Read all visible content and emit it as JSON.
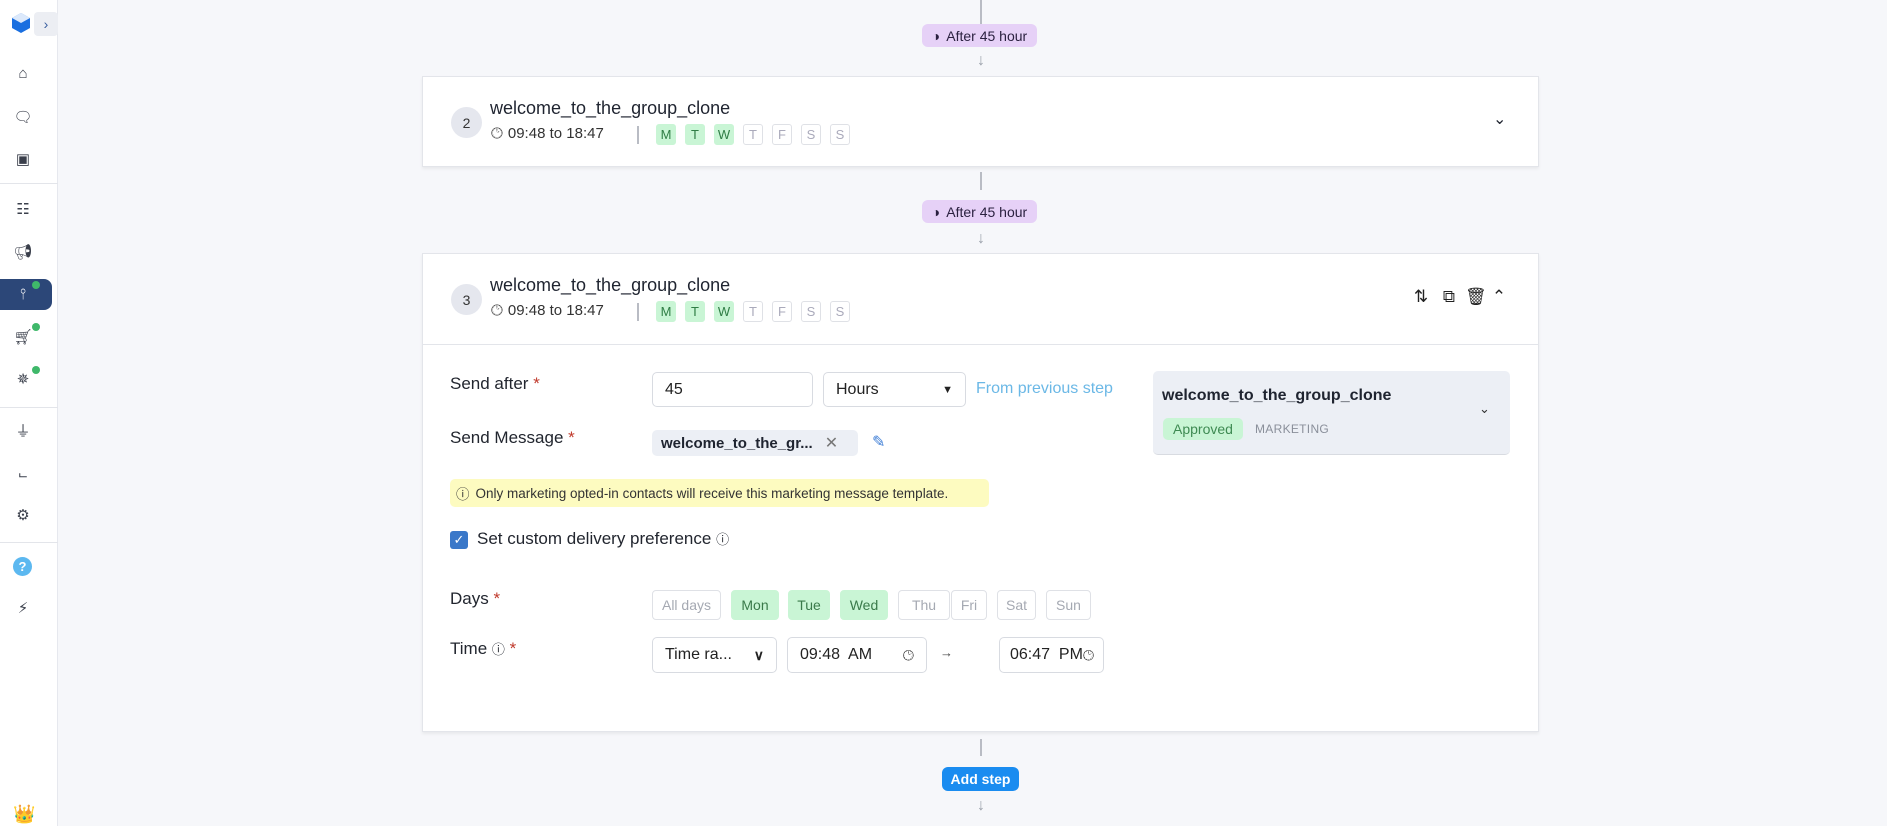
{
  "sidebar": {
    "items": [
      "home",
      "chat",
      "contacts",
      "bot",
      "campaigns",
      "flows",
      "commerce",
      "clicks",
      "integrations",
      "analytics",
      "settings",
      "help",
      "updates"
    ],
    "active": "flows"
  },
  "flow": {
    "delays": [
      {
        "label": "After 45 hour"
      },
      {
        "label": "After 45 hour"
      }
    ],
    "steps": [
      {
        "number": "2",
        "title": "welcome_to_the_group_clone",
        "time": "09:48 to 18:47",
        "days": [
          "M",
          "T",
          "W",
          "T",
          "F",
          "S",
          "S"
        ],
        "active_days": [
          true,
          true,
          true,
          false,
          false,
          false,
          false
        ]
      },
      {
        "number": "3",
        "title": "welcome_to_the_group_clone",
        "time": "09:48 to 18:47",
        "days": [
          "M",
          "T",
          "W",
          "T",
          "F",
          "S",
          "S"
        ],
        "active_days": [
          true,
          true,
          true,
          false,
          false,
          false,
          false
        ]
      }
    ],
    "add_step": "Add step"
  },
  "editor": {
    "send_after_label": "Send after",
    "required": "*",
    "send_after_value": "45",
    "unit": "Hours",
    "from_previous": "From previous step",
    "send_message_label": "Send Message",
    "message_chip": "welcome_to_the_gr...",
    "warning": "Only marketing opted-in contacts will receive this marketing message template.",
    "custom_pref_label": "Set custom delivery preference",
    "custom_pref_checked": true,
    "days_label": "Days",
    "day_options": [
      {
        "label": "All days",
        "on": false
      },
      {
        "label": "Mon",
        "on": true
      },
      {
        "label": "Tue",
        "on": true
      },
      {
        "label": "Wed",
        "on": true
      },
      {
        "label": "Thu",
        "on": false
      },
      {
        "label": "Fri",
        "on": false
      },
      {
        "label": "Sat",
        "on": false
      },
      {
        "label": "Sun",
        "on": false
      }
    ],
    "time_label": "Time",
    "time_mode": "Time ra...",
    "time_start": "09:48  AM",
    "time_end": "06:47  PM",
    "template": {
      "name": "welcome_to_the_group_clone",
      "status": "Approved",
      "category": "MARKETING"
    }
  },
  "colors": {
    "accent": "#1a8cf0",
    "active_nav": "#2c4778",
    "approved_bg": "#c9f5d5",
    "delay_bg": "#e6d1f7",
    "warning_bg": "#fdfbc0"
  }
}
